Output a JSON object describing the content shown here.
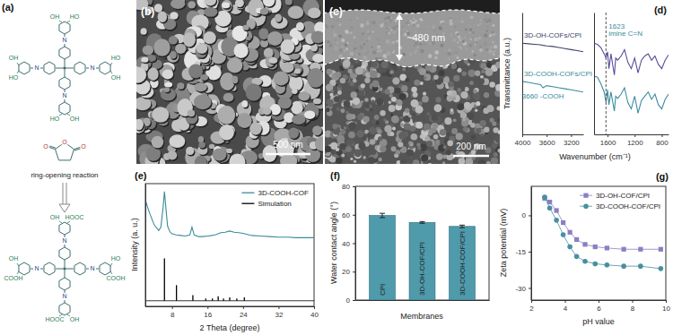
{
  "scheme": {
    "label": "(a)",
    "atom_n": "N",
    "reagent": {
      "atom": "O",
      "caption": "ring-opening reaction"
    },
    "before": [
      [
        "OH",
        "HO"
      ],
      [
        "HO",
        "OH"
      ],
      [
        "OH",
        "HO"
      ],
      [
        "HO",
        "OH"
      ]
    ],
    "after": [
      [
        "OH",
        "HOOC"
      ],
      [
        "HO",
        "COOH"
      ],
      [
        "OH",
        "HOOC"
      ],
      [
        "COOH",
        "OH"
      ]
    ]
  },
  "images": [
    {
      "label": "(b)",
      "scale_bar": "500 nm"
    },
    {
      "label": "(c)",
      "thickness": "~480 nm",
      "scale_bar": "200 nm"
    }
  ],
  "chart_data": [
    {
      "type": "line",
      "title": "(d)",
      "y_label": "Transmittance (a.u.)",
      "x": [
        4000,
        3900,
        3800,
        3700,
        3660,
        3600,
        3500,
        3400,
        3300,
        3200,
        3100,
        3000
      ],
      "series": [
        {
          "name": "3D-OH-COFs/CPI",
          "color": "#3d4466",
          "values": [
            0.86,
            0.855,
            0.85,
            0.845,
            0.84,
            0.835,
            0.83,
            0.82,
            0.81,
            0.8,
            0.79,
            0.78
          ]
        },
        {
          "name": "3D-COOH-COFs/CPI",
          "color": "#3a8c9c",
          "values": [
            0.5,
            0.49,
            0.48,
            0.47,
            0.44,
            0.46,
            0.45,
            0.44,
            0.43,
            0.42,
            0.41,
            0.4
          ]
        }
      ],
      "xlim": [
        4000,
        3000
      ],
      "xticks": [
        4000,
        3600,
        3200
      ],
      "ylim": [
        0,
        1.15
      ],
      "tick_labels": "x",
      "annotations": [
        {
          "text": "3660 -COOH",
          "x": 3660,
          "y": 0.34
        }
      ]
    },
    {
      "type": "line",
      "x_label": "Wavenumber (cm⁻¹)",
      "x": [
        1800,
        1750,
        1700,
        1650,
        1623,
        1600,
        1580,
        1550,
        1500,
        1480,
        1450,
        1400,
        1350,
        1300,
        1250,
        1200,
        1150,
        1100,
        1050,
        1000,
        950,
        900,
        850,
        800,
        750,
        700
      ],
      "series": [
        {
          "color": "#5b4b9a",
          "values": [
            0.86,
            0.85,
            0.82,
            0.76,
            0.72,
            0.78,
            0.62,
            0.76,
            0.56,
            0.72,
            0.7,
            0.74,
            0.8,
            0.68,
            0.62,
            0.72,
            0.58,
            0.7,
            0.74,
            0.76,
            0.7,
            0.74,
            0.66,
            0.62,
            0.7,
            0.75
          ]
        },
        {
          "color": "#3a8c9c",
          "values": [
            0.55,
            0.54,
            0.48,
            0.4,
            0.3,
            0.42,
            0.28,
            0.4,
            0.22,
            0.36,
            0.34,
            0.38,
            0.44,
            0.3,
            0.24,
            0.36,
            0.2,
            0.32,
            0.36,
            0.4,
            0.33,
            0.38,
            0.28,
            0.24,
            0.33,
            0.38
          ]
        }
      ],
      "xlim": [
        1800,
        700
      ],
      "xticks": [
        1600,
        1200,
        800
      ],
      "ylim": [
        0,
        1.15
      ],
      "tick_labels": "x",
      "annotations": [
        {
          "text": "1623",
          "x": 1623,
          "y": 1.0
        },
        {
          "text": "imine C=N",
          "x": 1623,
          "y": 0.93
        }
      ]
    },
    {
      "type": "line",
      "title": "(e)",
      "x_label": "2 Theta (degree)",
      "y_label": "Intensity (a. u.)",
      "series": [
        {
          "name": "3D-COOH-COF",
          "color": "#3a8c9c",
          "x": [
            2,
            3,
            4,
            5,
            5.5,
            6,
            6.3,
            6.6,
            7,
            7.5,
            8,
            9,
            10,
            11,
            12,
            12.5,
            13,
            14,
            15,
            16,
            17,
            18,
            19,
            20,
            21,
            22,
            23,
            24,
            25,
            26,
            28,
            30,
            32,
            34,
            36,
            38,
            40
          ],
          "values": [
            90,
            78,
            68,
            63,
            66,
            84,
            98,
            84,
            67,
            62,
            60,
            59,
            58.5,
            58,
            59,
            66,
            59,
            57.5,
            57.5,
            58,
            58.5,
            59.5,
            61,
            61.5,
            62.5,
            61.5,
            61,
            60.5,
            59.5,
            58.5,
            58,
            57.5,
            57,
            57,
            56.5,
            56.5,
            56.5
          ]
        },
        {
          "name": "Simulation",
          "color": "#000000",
          "type": "stem",
          "x": [
            6.3,
            9.0,
            12.7,
            15.6,
            17.1,
            18.4,
            19.6,
            21.0,
            22.6,
            24.3
          ],
          "values": [
            38,
            14,
            5,
            2,
            2,
            4,
            2,
            3,
            2,
            3
          ]
        }
      ],
      "xlim": [
        2,
        40
      ],
      "xticks": [
        8,
        16,
        24,
        32,
        40
      ],
      "ylim": [
        -5,
        105
      ],
      "tick_labels": "x",
      "legend": "top-right"
    },
    {
      "type": "bar",
      "title": "(f)",
      "x_label": "Membranes",
      "y_label": "Water contact angle (°)",
      "categories": [
        "CPI",
        "3D-OH-COF/CPI",
        "3D-COOH-COF/CPI"
      ],
      "values": [
        59.5,
        54.6,
        51.8
      ],
      "errors": [
        1.5,
        0.6,
        0.9
      ],
      "color": "#4f9aab",
      "ylim": [
        0,
        80
      ],
      "yticks": [
        0,
        20,
        40,
        60,
        80
      ]
    },
    {
      "type": "line",
      "title": "(g)",
      "x_label": "pH value",
      "y_label": "Zeta potential (mV)",
      "series": [
        {
          "name": "3D-OH-COF/CPI",
          "color": "#8b7fc4",
          "marker": "square",
          "line_style": "solid",
          "x": [
            2.8,
            3.1,
            3.5,
            3.9,
            4.3,
            4.7,
            5.2,
            5.8,
            6.5,
            7.5,
            8.5,
            9.7
          ],
          "values": [
            7,
            5.5,
            2,
            -3,
            -7,
            -10,
            -12,
            -13,
            -13.5,
            -14,
            -14,
            -14
          ]
        },
        {
          "name": "3D-COOH-COF/CPI",
          "color": "#4a8fa0",
          "marker": "circle",
          "line_style": "solid",
          "x": [
            2.8,
            3.1,
            3.5,
            3.9,
            4.3,
            4.7,
            5.2,
            5.8,
            6.5,
            7.5,
            8.5,
            9.7
          ],
          "values": [
            7.5,
            3,
            -2,
            -8,
            -13,
            -17,
            -19,
            -20,
            -20.5,
            -21,
            -21,
            -22
          ]
        }
      ],
      "xlim": [
        2,
        10
      ],
      "xticks": [
        2,
        4,
        6,
        8,
        10
      ],
      "ylim": [
        -35,
        12
      ],
      "yticks": [
        -30,
        -15,
        0
      ],
      "legend": "top-right"
    }
  ]
}
